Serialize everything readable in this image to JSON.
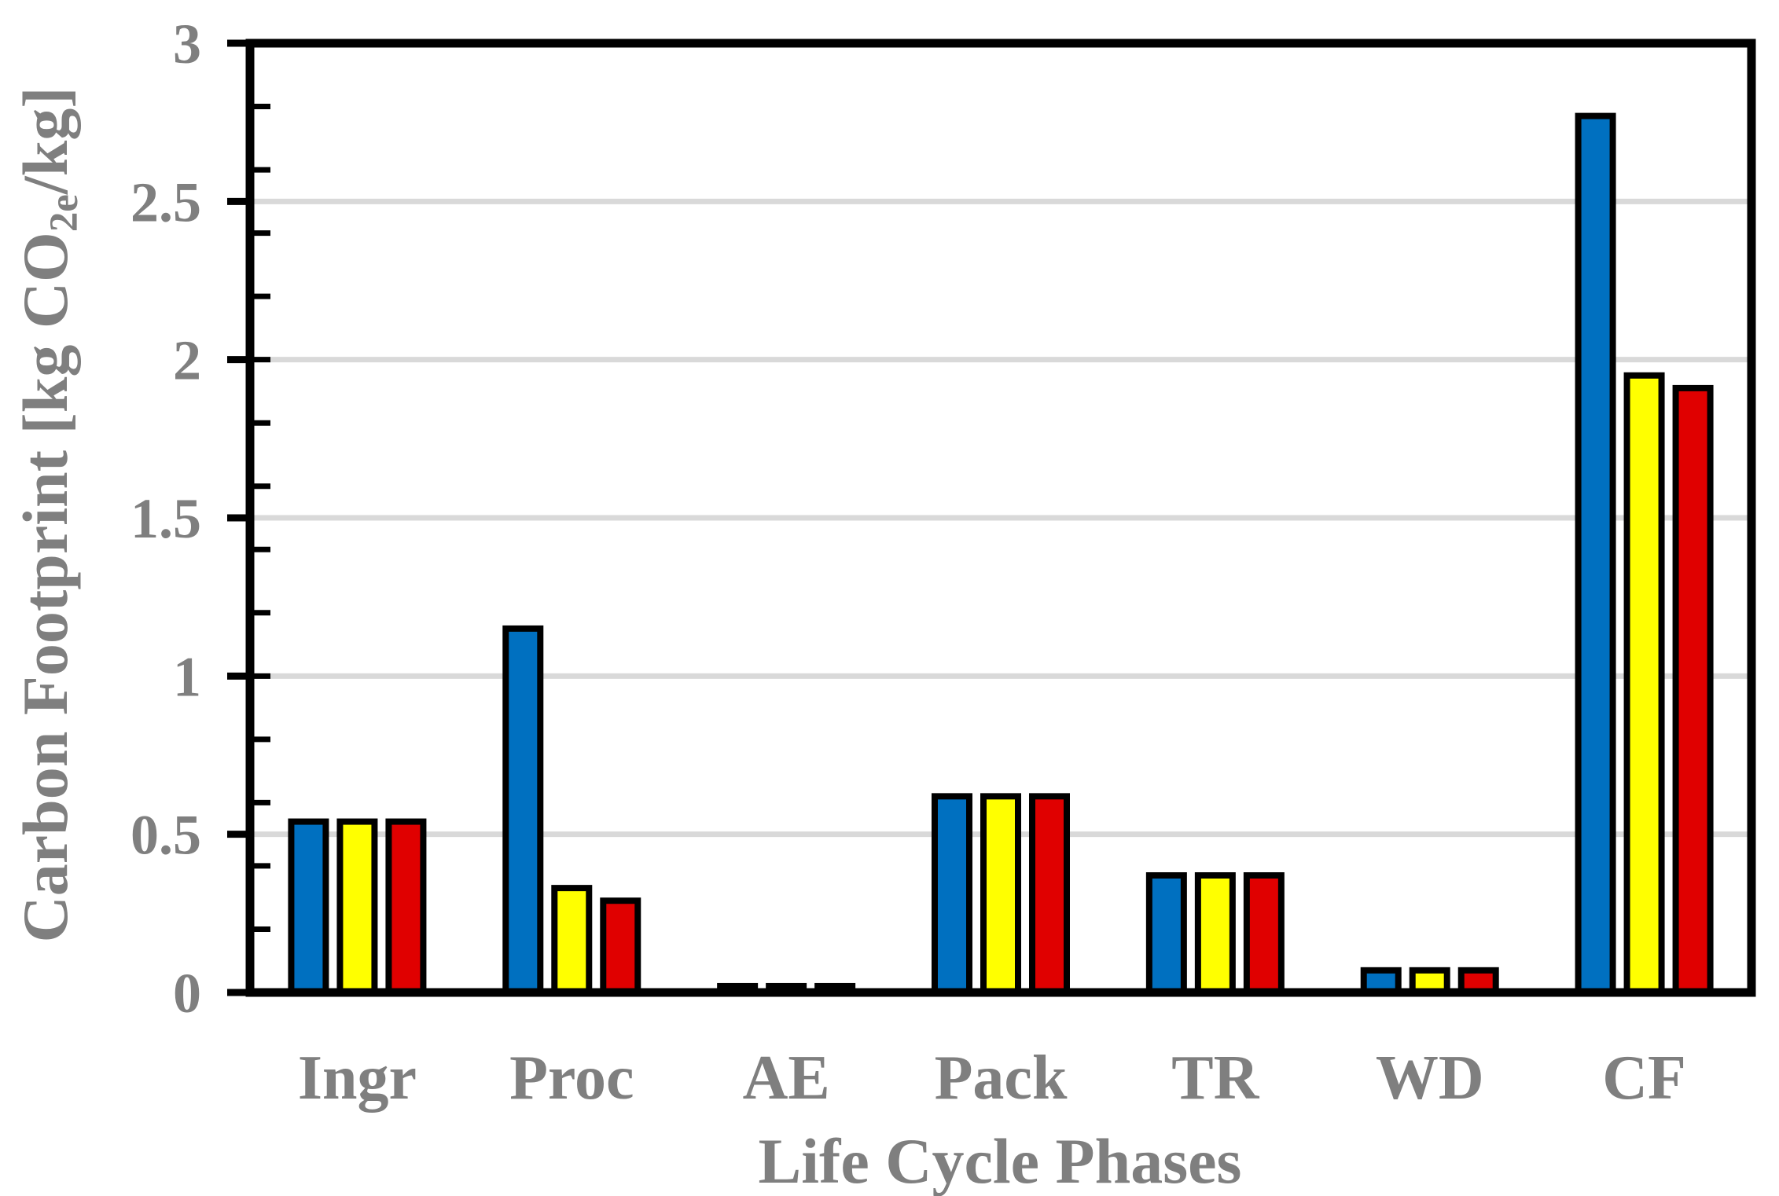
{
  "chart_data": {
    "type": "bar",
    "title": "",
    "xlabel": "Life Cycle Phases",
    "ylabel": "Carbon Footprint [kg CO2e/kg]",
    "ylabel_parts": {
      "prefix": "Carbon Footprint [kg CO",
      "sub": "2e",
      "suffix": "/kg]"
    },
    "categories": [
      "Ingr",
      "Proc",
      "AE",
      "Pack",
      "TR",
      "WD",
      "CF"
    ],
    "series": [
      {
        "name": "blue-series",
        "color": "#0070C0",
        "values": [
          0.54,
          1.15,
          0.02,
          0.62,
          0.37,
          0.07,
          2.77
        ]
      },
      {
        "name": "yellow-series",
        "color": "#FFFF00",
        "values": [
          0.54,
          0.33,
          0.02,
          0.62,
          0.37,
          0.07,
          1.95
        ]
      },
      {
        "name": "red-series",
        "color": "#E00000",
        "values": [
          0.54,
          0.29,
          0.02,
          0.62,
          0.37,
          0.07,
          1.91
        ]
      }
    ],
    "ylim": [
      0,
      3
    ],
    "y_major_tick_step": 0.5,
    "y_minor_tick_step": 0.2,
    "y_tick_labels": [
      "0",
      "0.5",
      "1",
      "1.5",
      "2",
      "2.5",
      "3"
    ],
    "grid": "horizontal-major-on",
    "legend_position": "none",
    "colors": {
      "text": "#7f7f7f",
      "gridline": "#d9d9d9",
      "axis": "#000000",
      "bar_border": "#000000",
      "background": "#ffffff"
    }
  }
}
